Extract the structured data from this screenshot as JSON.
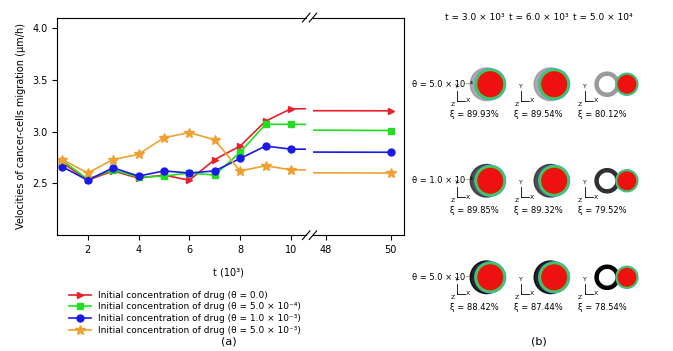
{
  "chart_data": {
    "type": "line",
    "panel_label": "(a)",
    "y_label": "Velocities of cancer-cells migration (μm/h)",
    "x_label": "t (10³)",
    "x": [
      1,
      2,
      3,
      4,
      5,
      6,
      7,
      8,
      9,
      10,
      50
    ],
    "x_axis_segments": [
      {
        "xlim": [
          0.8,
          10.6
        ],
        "xticks": [
          2,
          4,
          6,
          8,
          10
        ]
      },
      {
        "xlim": [
          47.6,
          50.4
        ],
        "xticks": [
          48,
          50
        ]
      }
    ],
    "ylim": [
      2.0,
      4.1
    ],
    "yticks": [
      {
        "value": 2.5,
        "label": "2.5"
      },
      {
        "value": 3.0,
        "label": "3.0"
      },
      {
        "value": 3.5,
        "label": "3.5"
      },
      {
        "value": 4.0,
        "label": "4.0"
      }
    ],
    "legend": "below",
    "series": [
      {
        "name": "Initial concentration of drug (θ = 0.0)",
        "color": "#e8202a",
        "marker": "triangle_right",
        "values": [
          2.7,
          2.53,
          2.62,
          2.55,
          2.58,
          2.53,
          2.73,
          2.86,
          3.1,
          3.22,
          3.2
        ]
      },
      {
        "name": "Initial concentration of drug (θ = 5.0 × 10⁻⁴)",
        "color": "#22dd22",
        "marker": "square",
        "values": [
          2.72,
          2.54,
          2.63,
          2.56,
          2.57,
          2.6,
          2.58,
          2.8,
          3.07,
          3.07,
          3.01
        ]
      },
      {
        "name": "Initial concentration of drug (θ = 1.0 × 10⁻³)",
        "color": "#1a1ae6",
        "marker": "circle",
        "values": [
          2.66,
          2.53,
          2.65,
          2.57,
          2.62,
          2.6,
          2.62,
          2.74,
          2.86,
          2.83,
          2.8
        ]
      },
      {
        "name": "Initial concentration of drug (θ = 5.0 × 10⁻³)",
        "color": "#f0a030",
        "marker": "star",
        "values": [
          2.73,
          2.6,
          2.73,
          2.78,
          2.94,
          2.99,
          2.92,
          2.62,
          2.67,
          2.63,
          2.6
        ]
      }
    ]
  },
  "panel_b": {
    "label": "(b)",
    "columns": [
      "t = 3.0 × 10³",
      "t = 6.0 × 10³",
      "t = 5.0 × 10⁴"
    ],
    "axis_labels": {
      "y": "Y",
      "z": "Z",
      "x": "X"
    },
    "rows": [
      {
        "label": "θ = 5.0 × 10⁻⁴",
        "xi": [
          "ξ = 89.93%",
          "ξ = 89.54%",
          "ξ = 80.12%"
        ]
      },
      {
        "label": "θ = 1.0 × 10⁻³",
        "xi": [
          "ξ = 89.85%",
          "ξ = 89.32%",
          "ξ = 79.52%"
        ]
      },
      {
        "label": "θ = 5.0 × 10⁻³",
        "xi": [
          "ξ = 88.42%",
          "ξ = 87.44%",
          "ξ = 78.54%"
        ]
      }
    ]
  }
}
